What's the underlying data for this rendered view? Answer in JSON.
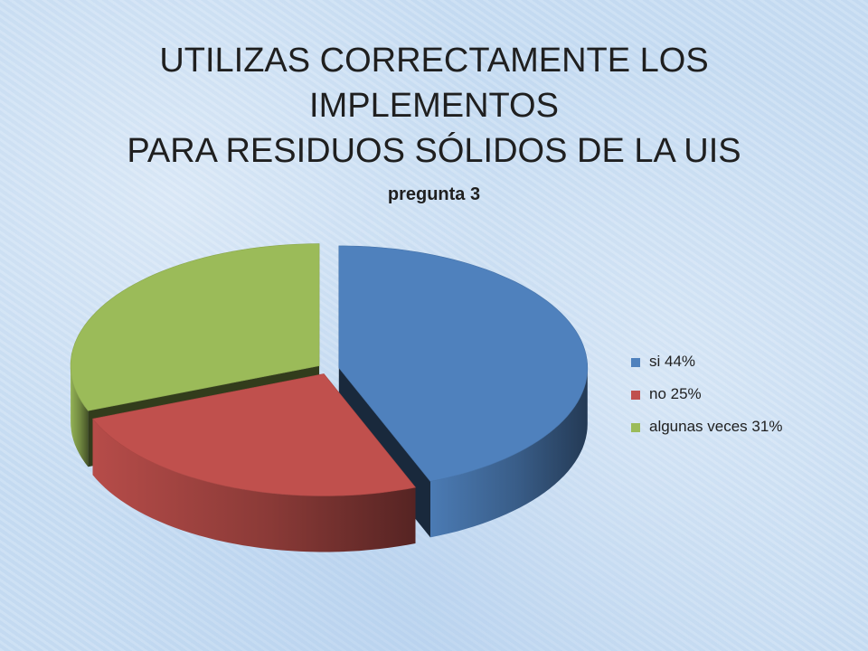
{
  "slide": {
    "title": "UTILIZAS CORRECTAMENTE LOS IMPLEMENTOS\nPARA RESIDUOS SÓLIDOS DE LA UIS"
  },
  "chart_data": {
    "type": "pie",
    "style": "3d-exploded",
    "title": "pregunta 3",
    "legend_position": "right",
    "slices": [
      {
        "label": "si 44%",
        "value": 44,
        "color": "#4f81bd"
      },
      {
        "label": "no 25%",
        "value": 25,
        "color": "#c0504d"
      },
      {
        "label": "algunas veces 31%",
        "value": 31,
        "color": "#9bbb59"
      }
    ]
  }
}
